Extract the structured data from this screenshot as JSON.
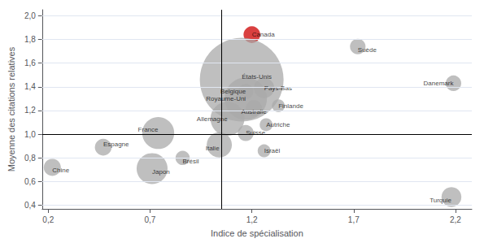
{
  "chart_data": {
    "type": "scatter",
    "xlabel": "Indice de spécialisation",
    "ylabel": "Moyenne des citations relatives",
    "names": [
      "Canada",
      "États-Unis",
      "Royaume-Uni",
      "Belgique",
      "Allemagne",
      "France",
      "Suisse",
      "Italie",
      "Pays-Bas",
      "Australie",
      "Finlande",
      "Autriche",
      "Suède",
      "Danemark",
      "Turquie",
      "Israël",
      "Espagne",
      "Japon",
      "Brésil",
      "Chine"
    ],
    "x": [
      1.2,
      1.15,
      1.17,
      1.17,
      1.08,
      0.74,
      1.17,
      1.04,
      1.26,
      1.21,
      1.33,
      1.27,
      1.72,
      2.19,
      2.18,
      1.26,
      0.47,
      0.71,
      0.86,
      0.22
    ],
    "y": [
      1.84,
      1.46,
      1.3,
      1.36,
      1.13,
      1.01,
      1.01,
      0.91,
      1.39,
      1.22,
      1.24,
      1.08,
      1.74,
      1.43,
      0.47,
      0.86,
      0.89,
      0.71,
      0.8,
      0.72
    ],
    "sizes": [
      220,
      5500,
      1400,
      180,
      900,
      800,
      200,
      500,
      320,
      200,
      130,
      130,
      190,
      190,
      310,
      130,
      220,
      750,
      160,
      230
    ],
    "colors": [
      "#cc0000",
      "#aaaaaa",
      "#aaaaaa",
      "#aaaaaa",
      "#aaaaaa",
      "#aaaaaa",
      "#aaaaaa",
      "#aaaaaa",
      "#aaaaaa",
      "#aaaaaa",
      "#aaaaaa",
      "#aaaaaa",
      "#aaaaaa",
      "#aaaaaa",
      "#aaaaaa",
      "#aaaaaa",
      "#aaaaaa",
      "#aaaaaa",
      "#aaaaaa",
      "#aaaaaa"
    ],
    "vline_x": 1.05,
    "hline_y": 1.0,
    "xlim": [
      0.17,
      2.28
    ],
    "ylim": [
      0.37,
      2.05
    ],
    "xticks": [
      {
        "value": 0.2,
        "label": "0,2"
      },
      {
        "value": 0.7,
        "label": "0,7"
      },
      {
        "value": 1.2,
        "label": "1,2"
      },
      {
        "value": 1.7,
        "label": "1,7"
      },
      {
        "value": 2.2,
        "label": "2,2"
      }
    ],
    "yticks": [
      {
        "value": 0.4,
        "label": "0,4"
      },
      {
        "value": 0.6,
        "label": "0,6"
      },
      {
        "value": 0.8,
        "label": "0,8"
      },
      {
        "value": 1.0,
        "label": "1,0"
      },
      {
        "value": 1.2,
        "label": "1,2"
      },
      {
        "value": 1.4,
        "label": "1,4"
      },
      {
        "value": 1.6,
        "label": "1,6"
      },
      {
        "value": 1.8,
        "label": "1,8"
      },
      {
        "value": 2.0,
        "label": "2,0"
      }
    ],
    "grid": "y"
  }
}
